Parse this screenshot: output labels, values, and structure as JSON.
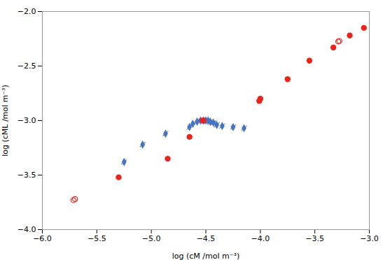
{
  "chart_data": {
    "type": "scatter",
    "xlabel": "log (cM /mol m⁻³)",
    "ylabel": "log (cML /mol m⁻³)",
    "xlim": [
      -6.0,
      -3.0
    ],
    "ylim": [
      -4.0,
      -2.0
    ],
    "xticks": [
      {
        "value": -6.0,
        "label": "−6.0"
      },
      {
        "value": -5.5,
        "label": "−5.5"
      },
      {
        "value": -5.0,
        "label": "−5.0"
      },
      {
        "value": -4.5,
        "label": "−4.5"
      },
      {
        "value": -4.0,
        "label": "−4.0"
      },
      {
        "value": -3.5,
        "label": "−3.5"
      },
      {
        "value": -3.0,
        "label": "−3.0"
      }
    ],
    "yticks": [
      {
        "value": -4.0,
        "label": "−4.0"
      },
      {
        "value": -3.5,
        "label": "−3.5"
      },
      {
        "value": -3.0,
        "label": "−3.0"
      },
      {
        "value": -2.5,
        "label": "−2.5"
      },
      {
        "value": -2.0,
        "label": "−2.0"
      }
    ],
    "grid": false,
    "series": [
      {
        "color": "#4472c4",
        "marker": "diamond",
        "x": [
          -5.25,
          -5.08,
          -4.87,
          -4.65,
          -4.62,
          -4.58,
          -4.55,
          -4.52,
          -4.5,
          -4.48,
          -4.46,
          -4.43,
          -4.4,
          -4.35,
          -4.25,
          -4.15
        ],
        "values": [
          -3.38,
          -3.22,
          -3.12,
          -3.06,
          -3.03,
          -3.01,
          -3.0,
          -3.0,
          -3.0,
          -3.0,
          -3.01,
          -3.02,
          -3.04,
          -3.05,
          -3.06,
          -3.07
        ]
      },
      {
        "color": "#e8251a",
        "marker": "circle",
        "x": [
          -5.3,
          -4.85,
          -4.65,
          -4.53,
          -4.0,
          -4.01,
          -3.75,
          -3.55,
          -3.33,
          -3.18,
          -3.05
        ],
        "values": [
          -3.52,
          -3.35,
          -3.15,
          -3.0,
          -2.8,
          -2.82,
          -2.62,
          -2.45,
          -2.33,
          -2.22,
          -2.15
        ]
      },
      {
        "color": "#e8251a",
        "marker": "open_circle",
        "x": [
          -5.7,
          -5.715,
          -4.52,
          -3.285,
          -3.275
        ],
        "values": [
          -3.72,
          -3.73,
          -3.0,
          -2.275,
          -2.27
        ]
      }
    ]
  }
}
